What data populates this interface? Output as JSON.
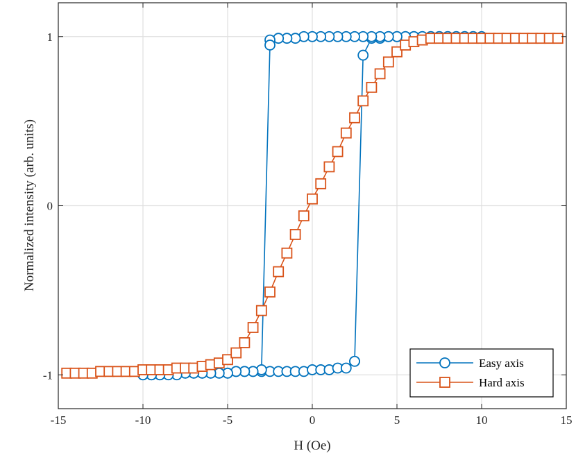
{
  "chart_data": {
    "type": "line",
    "xlabel": "H (Oe)",
    "ylabel": "Normalized intensity (arb. units)",
    "xlim": [
      -15,
      15
    ],
    "ylim": [
      -1.2,
      1.2
    ],
    "xticks": [
      -15,
      -10,
      -5,
      0,
      5,
      10,
      15
    ],
    "xtick_labels": [
      "-15",
      "-10",
      "-5",
      "0",
      "5",
      "10",
      "15"
    ],
    "yticks": [
      -1,
      0,
      1
    ],
    "ytick_labels": [
      "-1",
      "0",
      "1"
    ],
    "grid": true,
    "legend_position": "bottom-right",
    "series": [
      {
        "name": "Easy axis",
        "color": "#0072BD",
        "marker": "circle",
        "x": [
          -10,
          -9.5,
          -9,
          -8.5,
          -8,
          -7.5,
          -7,
          -6.5,
          -6,
          -5.5,
          -5,
          -4.5,
          -4,
          -3.5,
          -3,
          -2.5,
          -2,
          -1.5,
          -1,
          -0.5,
          0,
          0.5,
          1,
          1.5,
          2,
          2.5,
          2.5,
          3,
          3.5,
          4,
          4.5,
          5,
          5.5,
          6,
          6.5,
          7,
          7.5,
          8,
          8.5,
          9,
          9.5,
          10,
          9.5,
          9,
          8.5,
          8,
          7.5,
          7,
          6.5,
          6,
          5.5,
          5,
          4.5,
          4,
          3.5,
          3,
          2.5,
          2,
          1.5,
          1,
          0.5,
          0,
          -0.5,
          -1,
          -1.5,
          -2,
          -2.5,
          -2.5,
          -3,
          -3.5,
          -4,
          -4.5,
          -5,
          -5.5,
          -6,
          -6.5,
          -7,
          -7.5,
          -8,
          -8.5,
          -9,
          -9.5,
          -10
        ],
        "y": [
          -1.0,
          -1.0,
          -1.0,
          -0.99,
          -0.99,
          -0.99,
          -0.99,
          -0.99,
          -0.99,
          -0.99,
          -0.99,
          -0.98,
          -0.98,
          -0.98,
          -0.98,
          -0.98,
          -0.98,
          -0.98,
          -0.98,
          -0.98,
          -0.97,
          -0.97,
          -0.97,
          -0.96,
          -0.96,
          -0.92,
          -0.92,
          0.89,
          0.99,
          0.99,
          1.0,
          1.0,
          1.0,
          1.0,
          1.0,
          1.0,
          1.0,
          1.0,
          1.0,
          1.0,
          1.0,
          1.0,
          1.0,
          1.0,
          1.0,
          1.0,
          1.0,
          1.0,
          1.0,
          1.0,
          1.0,
          1.0,
          1.0,
          1.0,
          1.0,
          1.0,
          1.0,
          1.0,
          1.0,
          1.0,
          1.0,
          1.0,
          1.0,
          0.99,
          0.99,
          0.99,
          0.98,
          0.95,
          -0.97,
          -0.98,
          -0.98,
          -0.98,
          -0.99,
          -0.99,
          -0.99,
          -0.99,
          -0.99,
          -0.99,
          -1.0,
          -1.0,
          -1.0,
          -1.0,
          -1.0
        ]
      },
      {
        "name": "Hard axis",
        "color": "#D95319",
        "marker": "square",
        "x": [
          -14.5,
          -14,
          -13.5,
          -13,
          -12.5,
          -12,
          -11.5,
          -11,
          -10.5,
          -10,
          -9.5,
          -9,
          -8.5,
          -8,
          -7.5,
          -7,
          -6.5,
          -6,
          -5.5,
          -5,
          -4.5,
          -4,
          -3.5,
          -3,
          -2.5,
          -2,
          -1.5,
          -1,
          -0.5,
          0,
          0.5,
          1,
          1.5,
          2,
          2.5,
          3,
          3.5,
          4,
          4.5,
          5,
          5.5,
          6,
          6.5,
          7,
          7.5,
          8,
          8.5,
          9,
          9.5,
          10,
          10.5,
          11,
          11.5,
          12,
          12.5,
          13,
          13.5,
          14,
          14.5
        ],
        "y": [
          -0.99,
          -0.99,
          -0.99,
          -0.99,
          -0.98,
          -0.98,
          -0.98,
          -0.98,
          -0.98,
          -0.97,
          -0.97,
          -0.97,
          -0.97,
          -0.96,
          -0.96,
          -0.96,
          -0.95,
          -0.94,
          -0.93,
          -0.91,
          -0.87,
          -0.81,
          -0.72,
          -0.62,
          -0.51,
          -0.39,
          -0.28,
          -0.17,
          -0.06,
          0.04,
          0.13,
          0.23,
          0.32,
          0.43,
          0.52,
          0.62,
          0.7,
          0.78,
          0.85,
          0.91,
          0.95,
          0.97,
          0.98,
          0.99,
          0.99,
          0.99,
          0.99,
          0.99,
          0.99,
          0.99,
          0.99,
          0.99,
          0.99,
          0.99,
          0.99,
          0.99,
          0.99,
          0.99,
          0.99
        ]
      }
    ]
  }
}
